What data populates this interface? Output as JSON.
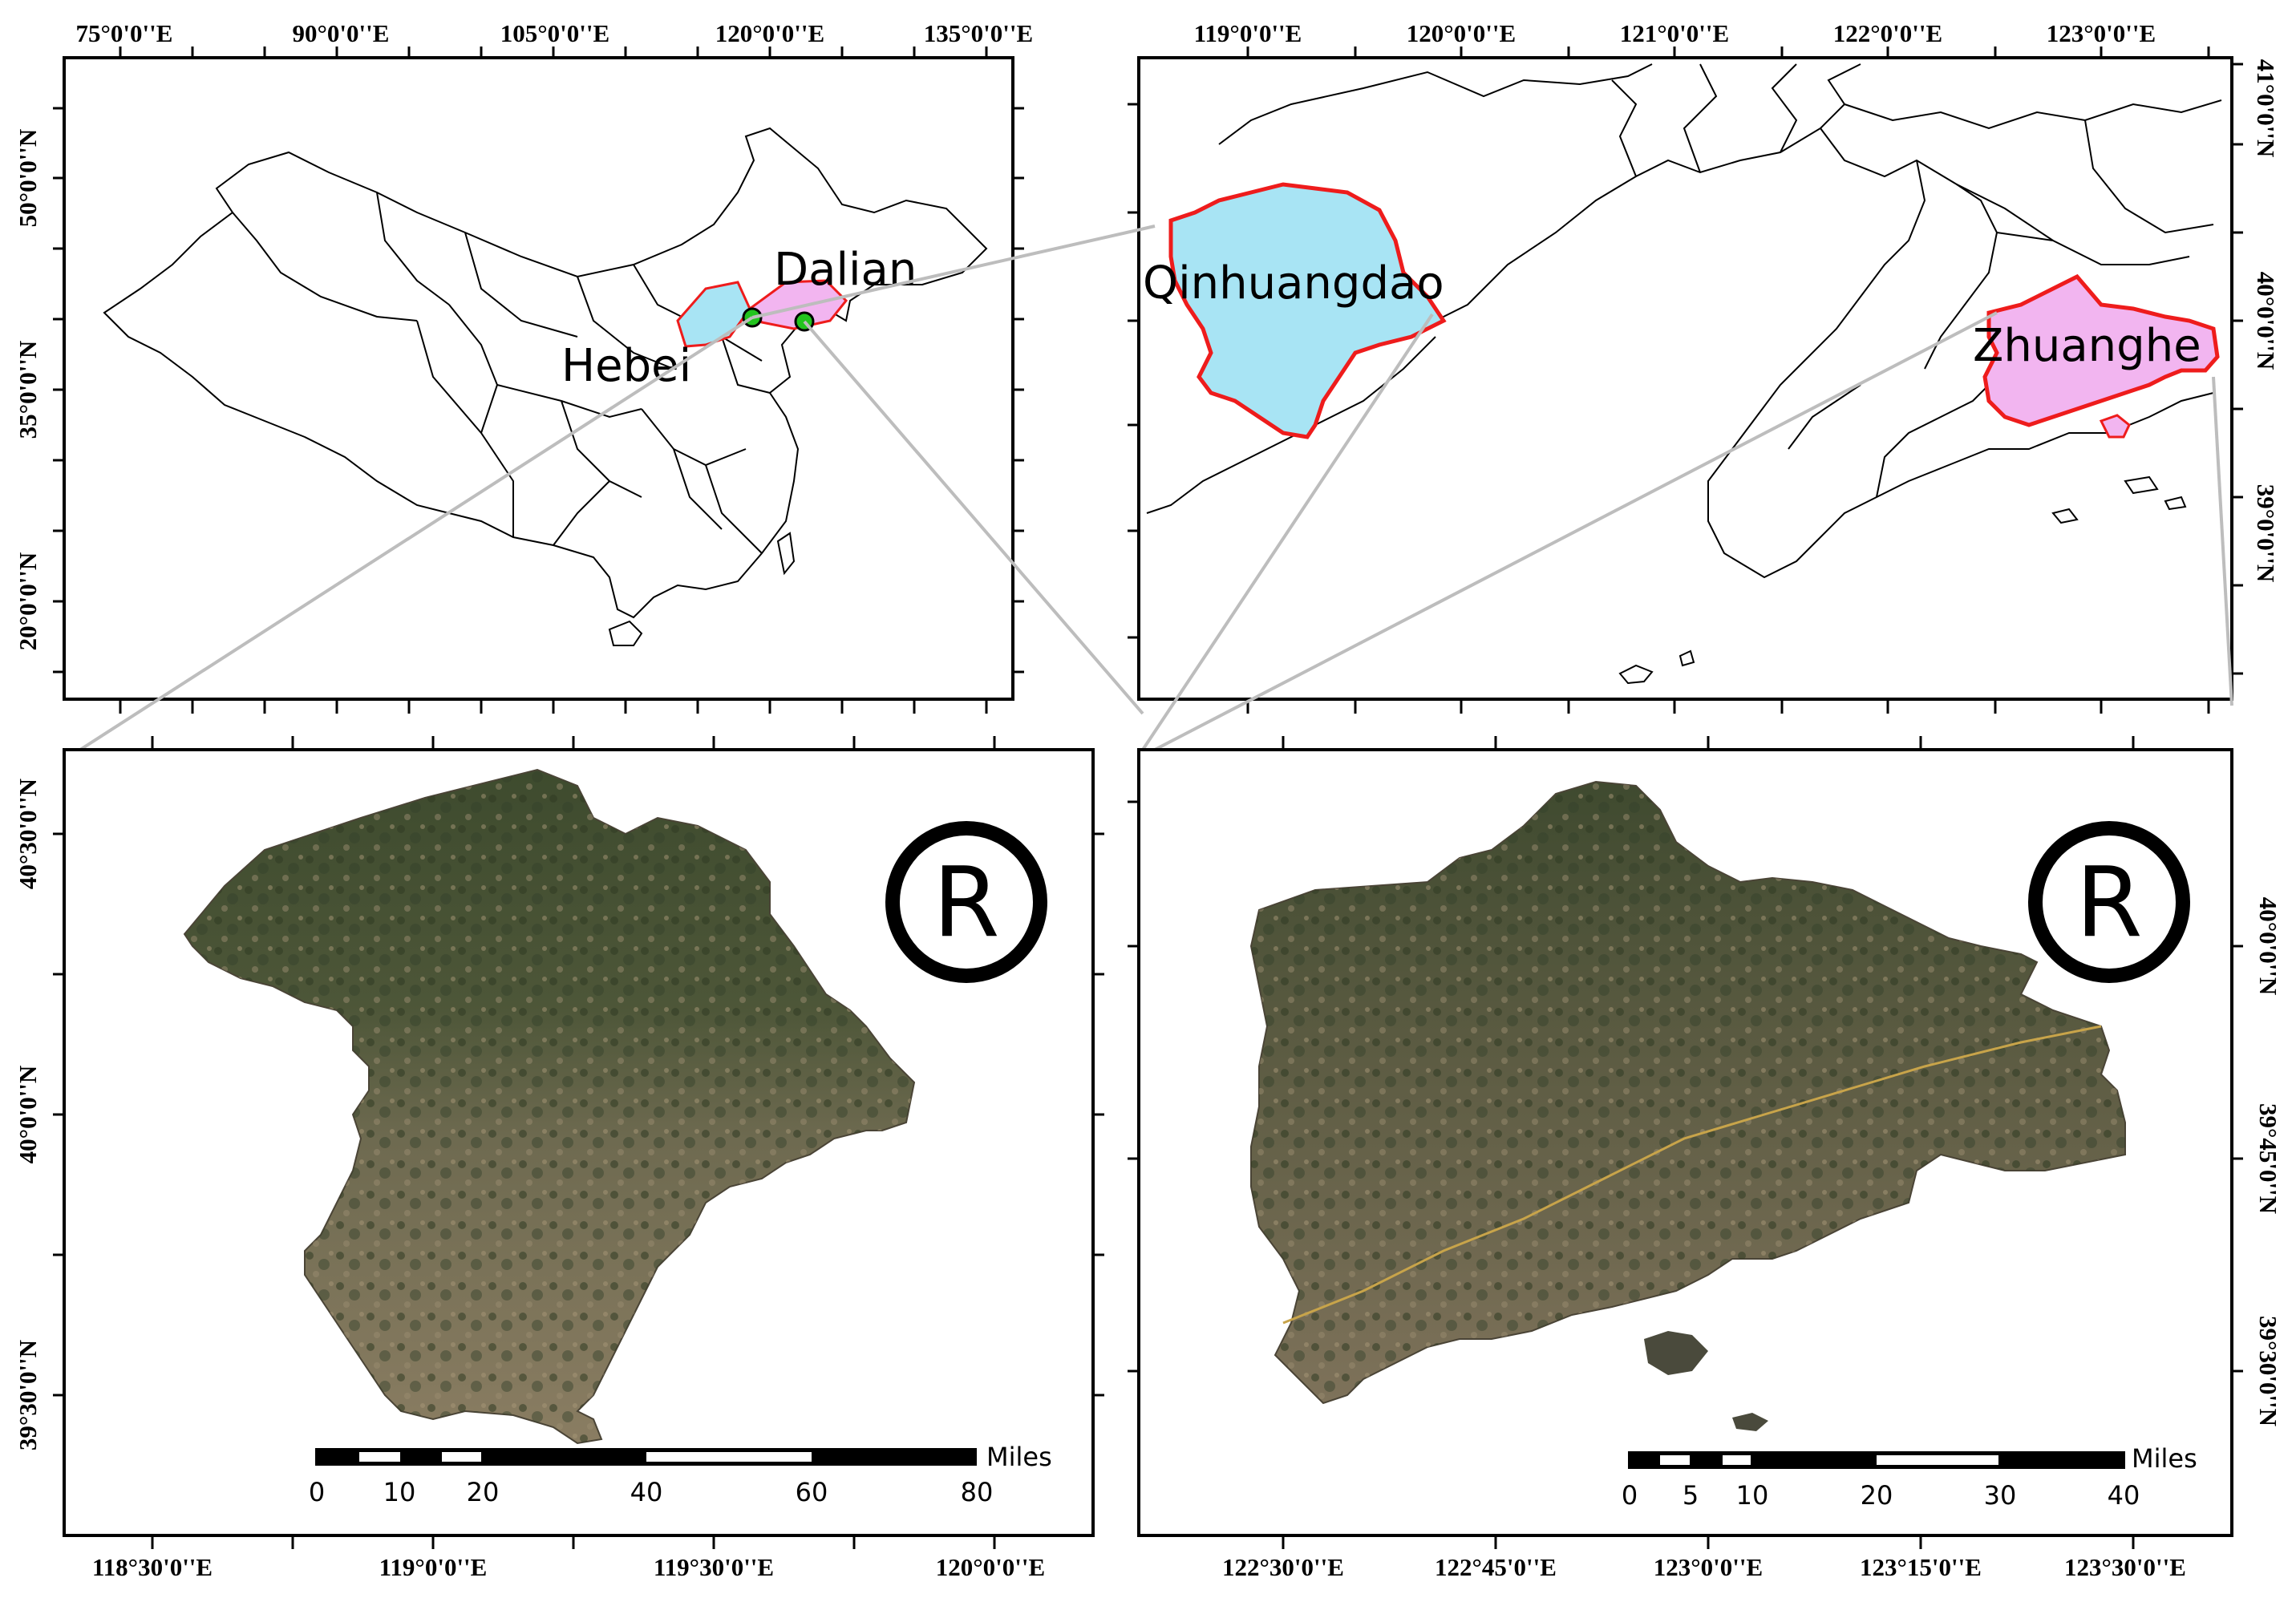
{
  "colors": {
    "qinhuangdao_fill": "#a8e4f4",
    "zhuanghe_fill": "#f2b5f0",
    "study_border": "#ee1c1c",
    "site_marker": "#22c41e",
    "connector": "#bdbdbd",
    "terrain_dark": "#3c4a2c",
    "terrain_light": "#8a7e62"
  },
  "panels": {
    "china": {
      "top_labels": [
        "75°0'0''E",
        "90°0'0''E",
        "105°0'0''E",
        "120°0'0''E",
        "135°0'0''E"
      ],
      "left_labels": [
        "50°0'0''N",
        "35°0'0''N",
        "20°0'0''N"
      ],
      "map_labels": [
        "Dalian",
        "Hebei"
      ],
      "site_markers": [
        "site-qinhuangdao",
        "site-zhuanghe"
      ]
    },
    "region": {
      "top_labels": [
        "119°0'0''E",
        "120°0'0''E",
        "121°0'0''E",
        "122°0'0''E",
        "123°0'0''E"
      ],
      "right_labels": [
        "41°0'0''N",
        "40°0'0''N",
        "39°0'0''N"
      ],
      "map_labels": [
        "Qinhuangdao",
        "Zhuanghe"
      ]
    },
    "qinhuangdao": {
      "bottom_labels": [
        "118°30'0''E",
        "119°0'0''E",
        "119°30'0''E",
        "120°0'0''E"
      ],
      "left_labels": [
        "40°30'0''N",
        "40°0'0''N",
        "39°30'0''N"
      ],
      "north_symbol": "R",
      "scale": {
        "ticks": [
          "0",
          "10",
          "20",
          "40",
          "60",
          "80"
        ],
        "unit": "Miles"
      }
    },
    "zhuanghe": {
      "bottom_labels": [
        "122°30'0''E",
        "122°45'0''E",
        "123°0'0''E",
        "123°15'0''E",
        "123°30'0''E"
      ],
      "right_labels": [
        "40°0'0''N",
        "39°45'0''N",
        "39°30'0''N"
      ],
      "north_symbol": "R",
      "scale": {
        "ticks": [
          "0",
          "5",
          "10",
          "20",
          "30",
          "40"
        ],
        "unit": "Miles"
      }
    }
  }
}
